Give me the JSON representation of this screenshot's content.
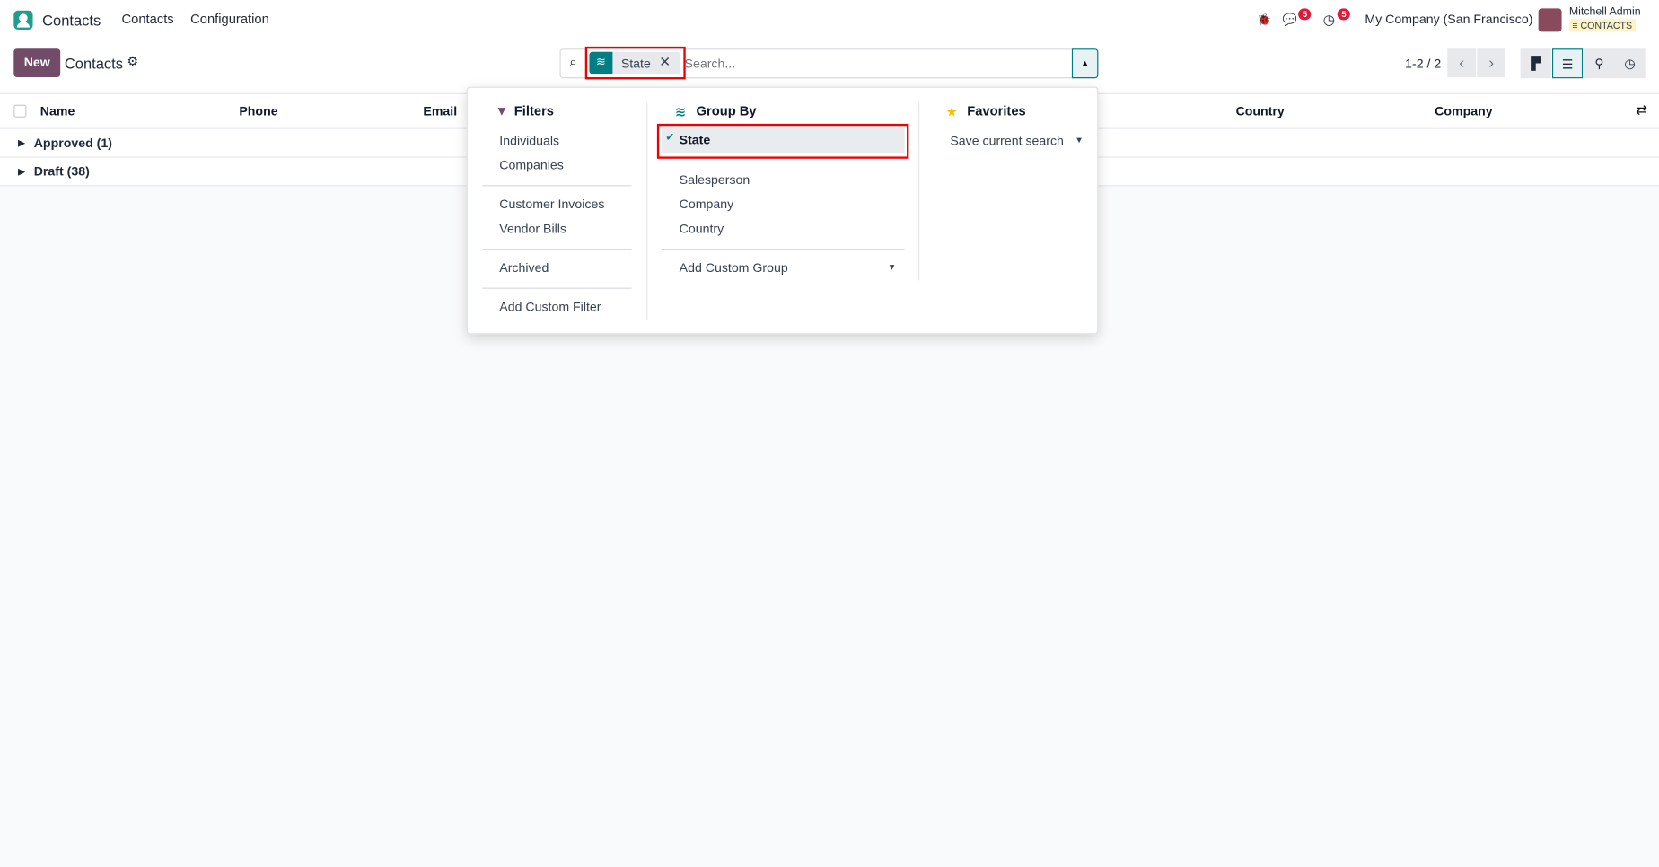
{
  "nav": {
    "app_name": "Contacts",
    "menu": [
      "Contacts",
      "Configuration"
    ],
    "messages_count": "5",
    "activities_count": "5",
    "company": "My Company (San Francisco)",
    "user": "Mitchell Admin",
    "database": "CONTACTS"
  },
  "control": {
    "new_label": "New",
    "title": "Contacts",
    "facet_label": "State",
    "search_placeholder": "Search...",
    "pager": "1-2 / 2"
  },
  "table": {
    "columns": [
      "Name",
      "Phone",
      "Email",
      "Country",
      "Company"
    ],
    "groups": [
      {
        "label": "Approved (1)"
      },
      {
        "label": "Draft (38)"
      }
    ]
  },
  "dropdown": {
    "filters": {
      "title": "Filters",
      "items": [
        "Individuals",
        "Companies",
        "Customer Invoices",
        "Vendor Bills",
        "Archived",
        "Add Custom Filter"
      ]
    },
    "group_by": {
      "title": "Group By",
      "items": [
        "State",
        "Salesperson",
        "Company",
        "Country"
      ],
      "selected": "State",
      "add_custom": "Add Custom Group"
    },
    "favorites": {
      "title": "Favorites",
      "save": "Save current search"
    }
  },
  "colors": {
    "brand": "#714b67",
    "accent": "#017e84",
    "badge": "#e0193b"
  }
}
